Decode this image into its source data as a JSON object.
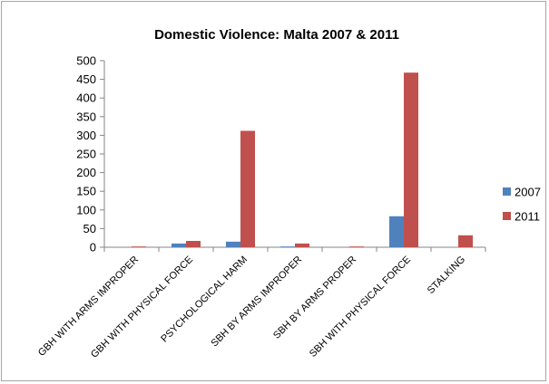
{
  "chart_data": {
    "type": "bar",
    "title": "Domestic Violence: Malta 2007 & 2011",
    "xlabel": "",
    "ylabel": "",
    "ylim": [
      0,
      500
    ],
    "yticks": [
      0,
      50,
      100,
      150,
      200,
      250,
      300,
      350,
      400,
      450,
      500
    ],
    "grid": false,
    "legend_position": "right",
    "categories": [
      "GBH WITH ARMS IMPROPER",
      "GBH WITH PHYSICAL FORCE",
      "PSYCHOLOGICAL HARM",
      "SBH BY ARMS IMPROPER",
      "SBH BY ARMS PROPER",
      "SBH WITH PHYSICAL FORCE",
      "STALKING"
    ],
    "series": [
      {
        "name": "2007",
        "color": "#4f81bd",
        "values": [
          0,
          10,
          15,
          2,
          0,
          83,
          0
        ]
      },
      {
        "name": "2011",
        "color": "#c0504d",
        "values": [
          2,
          17,
          312,
          10,
          2,
          468,
          32
        ]
      }
    ]
  }
}
